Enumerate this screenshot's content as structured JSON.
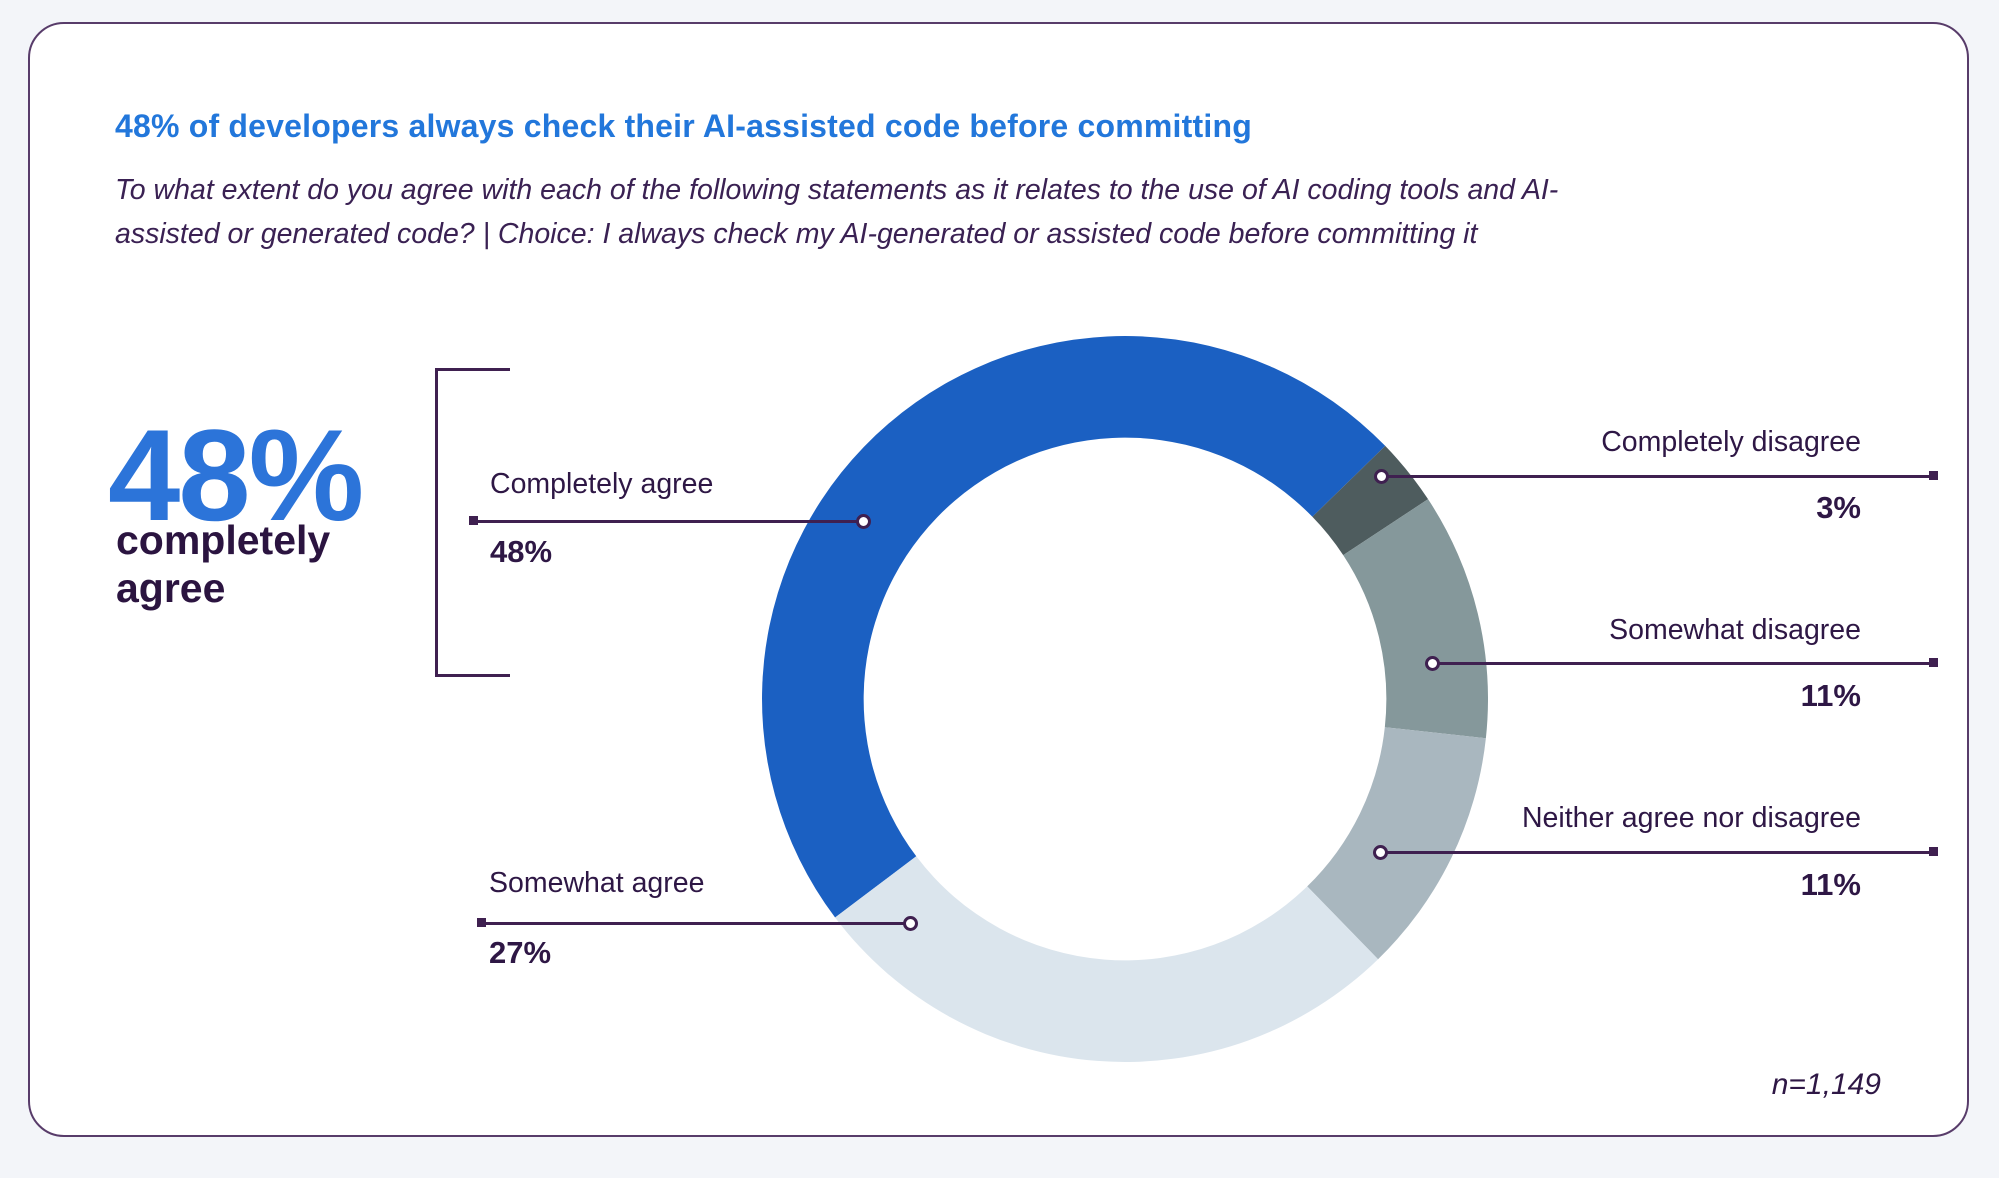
{
  "page": {
    "background": "#f3f5f9"
  },
  "card": {
    "title": "48% of developers always check their AI-assisted code before committing",
    "subtitle_line1": "To what extent do you agree with each of the following statements as it relates to the use of AI coding tools and AI-",
    "subtitle_line2": "assisted or generated code? | Choice: I always check my AI-generated or assisted code before committing it",
    "sample_size": "n=1,149"
  },
  "highlight": {
    "value": "48%",
    "caption_line1": "completely",
    "caption_line2": "agree"
  },
  "colors": {
    "title_blue": "#2277db",
    "highlight_blue": "#2c74d9",
    "dark_purple_text": "#2e1745",
    "leader_line": "#3f2050",
    "card_border": "#583c6a",
    "card_background": "#ffffff"
  },
  "chart_data": {
    "type": "pie",
    "variant": "donut",
    "title": "48% of developers always check their AI-assisted code before committing",
    "start_angle_deg": 233,
    "direction": "clockwise",
    "inner_radius_ratio": 0.72,
    "legend_position": "callouts",
    "sample_size": "n=1,149",
    "segments": [
      {
        "label": "Completely agree",
        "value": 48,
        "display": "48%",
        "color": "#1b60c2"
      },
      {
        "label": "Completely disagree",
        "value": 3,
        "display": "3%",
        "color": "#4e5c5e"
      },
      {
        "label": "Somewhat disagree",
        "value": 11,
        "display": "11%",
        "color": "#85989b"
      },
      {
        "label": "Neither agree nor disagree",
        "value": 11,
        "display": "11%",
        "color": "#a9b7bf"
      },
      {
        "label": "Somewhat agree",
        "value": 27,
        "display": "27%",
        "color": "#dbe5ed"
      }
    ]
  }
}
